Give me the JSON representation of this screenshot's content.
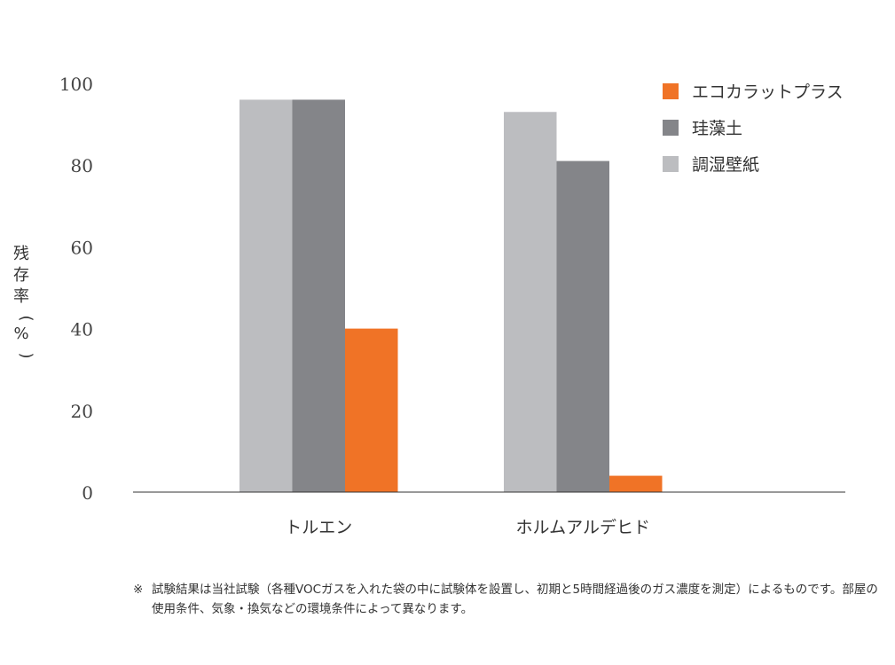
{
  "chart_data": {
    "type": "bar",
    "ylabel": "残存率（%）",
    "ylim": [
      0,
      100
    ],
    "yticks": [
      0,
      20,
      40,
      60,
      80,
      100
    ],
    "grid": false,
    "legend_position": "top-right",
    "categories": [
      "トルエン",
      "ホルムアルデヒド"
    ],
    "series": [
      {
        "name": "調湿壁紙",
        "color": "#bcbdc0",
        "values": [
          96,
          93
        ]
      },
      {
        "name": "珪藻土",
        "color": "#848589",
        "values": [
          96,
          81
        ]
      },
      {
        "name": "エコカラットプラス",
        "color": "#f07326",
        "values": [
          40,
          4
        ]
      }
    ],
    "legend_order": [
      "エコカラットプラス",
      "珪藻土",
      "調湿壁紙"
    ]
  },
  "footnote": {
    "mark": "※",
    "text": "試験結果は当社試験（各種VOCガスを入れた袋の中に試験体を設置し、初期と5時間経過後のガス濃度を測定）によるものです。部屋の使用条件、気象・換気などの環境条件によって異なります。"
  }
}
